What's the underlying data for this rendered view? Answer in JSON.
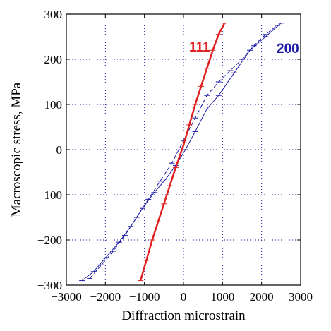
{
  "chart_data": {
    "type": "line",
    "title": "",
    "xlabel": "Diffraction microstrain",
    "ylabel": "Macroscopic stress, MPa",
    "xlim": [
      -3000,
      3000
    ],
    "ylim": [
      -300,
      300
    ],
    "x_ticks": [
      -3000,
      -2000,
      -1000,
      0,
      1000,
      2000,
      3000
    ],
    "y_ticks": [
      -300,
      -200,
      -100,
      0,
      100,
      200,
      300
    ],
    "x_tick_labels": [
      "−3000",
      "−2000",
      "−1000",
      "0",
      "1000",
      "2000",
      "3000"
    ],
    "y_tick_labels": [
      "−300",
      "−200",
      "−100",
      "0",
      "100",
      "200",
      "300"
    ],
    "grid": true,
    "colors": {
      "111": "#e02020",
      "200": "#1a1aa6"
    },
    "series": [
      {
        "name": "111",
        "label_position": "top-center",
        "x": [
          -1100,
          -950,
          -800,
          -650,
          -500,
          -350,
          -200,
          0,
          150,
          300,
          450,
          600,
          750,
          900,
          1050
        ],
        "y": [
          -290,
          -245,
          -200,
          -160,
          -120,
          -80,
          -40,
          10,
          55,
          100,
          140,
          180,
          220,
          255,
          280
        ]
      },
      {
        "name": "200",
        "label_position": "top-right",
        "x": [
          -2600,
          -2300,
          -2000,
          -1650,
          -1350,
          -1050,
          -750,
          -450,
          -200,
          50,
          300,
          600,
          900,
          1300,
          1700,
          2100,
          2500
        ],
        "y": [
          -290,
          -270,
          -240,
          -205,
          -170,
          -130,
          -95,
          -65,
          -35,
          0,
          40,
          90,
          120,
          170,
          220,
          250,
          280
        ]
      },
      {
        "name": "",
        "x": [
          -2400,
          -2100,
          -1800,
          -1500,
          -1200,
          -900,
          -600,
          -300,
          0,
          300,
          600,
          900,
          1200,
          1500,
          1800,
          2100,
          2400
        ],
        "y": [
          -285,
          -255,
          -225,
          -190,
          -150,
          -110,
          -70,
          -30,
          20,
          70,
          120,
          150,
          175,
          200,
          230,
          255,
          275
        ]
      }
    ]
  }
}
